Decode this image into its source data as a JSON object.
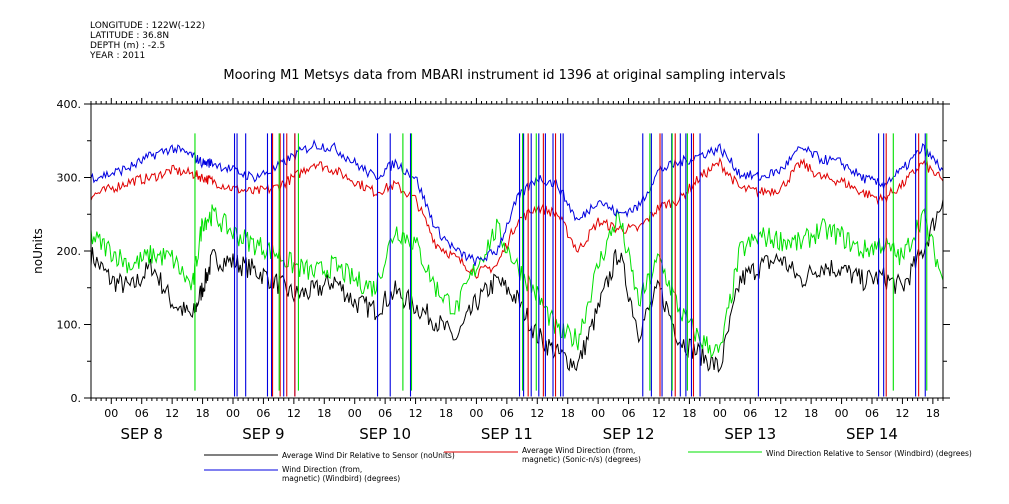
{
  "meta": {
    "longitude": "LONGITUDE : 122W(-122)",
    "latitude": "LATITUDE : 36.8N",
    "depth": "DEPTH (m) : -2.5",
    "year": "YEAR : 2011"
  },
  "chart_data": {
    "type": "line",
    "title": "Mooring M1 Metsys data from MBARI instrument id 1396 at original sampling intervals",
    "ylabel": "noUnits",
    "ylim": [
      0,
      400
    ],
    "y_ticks": [
      "0.",
      "100.",
      "200.",
      "300.",
      "400."
    ],
    "x_start_hour": -4,
    "x_end_hour": 164,
    "x_hour_ticks": [
      "00",
      "06",
      "12",
      "18",
      "00",
      "06",
      "12",
      "18",
      "00",
      "06",
      "12",
      "18",
      "00",
      "06",
      "12",
      "18",
      "00",
      "06",
      "12",
      "18",
      "00",
      "06",
      "12",
      "18",
      "00",
      "06",
      "12",
      "18"
    ],
    "x_day_labels": [
      "SEP  8",
      "SEP  9",
      "SEP 10",
      "SEP 11",
      "SEP 12",
      "SEP 13",
      "SEP 14"
    ],
    "grid": false,
    "legend_position": "bottom",
    "series": [
      {
        "name": "Average Wind Dir Relative to Sensor (noUnits)",
        "color": "#000000",
        "hours": [
          -4,
          0,
          4,
          8,
          12,
          16,
          18,
          20,
          24,
          28,
          32,
          36,
          40,
          44,
          48,
          52,
          56,
          60,
          64,
          68,
          72,
          76,
          80,
          84,
          88,
          92,
          96,
          100,
          104,
          108,
          112,
          116,
          120,
          124,
          128,
          132,
          136,
          140,
          144,
          148,
          152,
          156,
          160,
          164
        ],
        "values": [
          195,
          160,
          150,
          180,
          130,
          110,
          150,
          190,
          185,
          175,
          160,
          140,
          145,
          160,
          130,
          120,
          145,
          125,
          105,
          80,
          130,
          160,
          135,
          85,
          60,
          45,
          120,
          200,
          90,
          150,
          80,
          60,
          40,
          160,
          180,
          190,
          160,
          180,
          175,
          160,
          165,
          150,
          200,
          270
        ]
      },
      {
        "name": "Average Wind Direction (from, magnetic) (Sonic-n/s) (degrees)",
        "color": "#e00000",
        "hours": [
          -4,
          0,
          4,
          8,
          12,
          16,
          18,
          20,
          24,
          28,
          32,
          36,
          40,
          44,
          48,
          52,
          56,
          60,
          64,
          68,
          72,
          76,
          80,
          84,
          88,
          92,
          96,
          100,
          104,
          108,
          112,
          116,
          120,
          124,
          128,
          132,
          136,
          140,
          144,
          148,
          152,
          156,
          160,
          164
        ],
        "values": [
          275,
          285,
          295,
          300,
          310,
          305,
          300,
          295,
          285,
          280,
          285,
          300,
          320,
          310,
          295,
          280,
          290,
          270,
          210,
          190,
          170,
          180,
          240,
          260,
          250,
          200,
          240,
          230,
          230,
          260,
          270,
          300,
          320,
          285,
          280,
          285,
          320,
          300,
          295,
          280,
          270,
          290,
          320,
          295
        ]
      },
      {
        "name": "Wind Direction Relative to Sensor (Windbird) (degrees)",
        "color": "#00e000",
        "hours": [
          -4,
          0,
          4,
          8,
          12,
          16,
          18,
          20,
          24,
          28,
          32,
          36,
          40,
          44,
          48,
          52,
          56,
          60,
          64,
          68,
          72,
          76,
          80,
          84,
          88,
          92,
          96,
          100,
          104,
          108,
          112,
          116,
          120,
          124,
          128,
          132,
          136,
          140,
          144,
          148,
          152,
          156,
          160,
          164
        ],
        "values": [
          220,
          200,
          180,
          195,
          190,
          150,
          240,
          250,
          225,
          210,
          200,
          180,
          170,
          180,
          160,
          150,
          230,
          210,
          150,
          120,
          180,
          230,
          180,
          140,
          90,
          80,
          180,
          250,
          130,
          190,
          120,
          80,
          60,
          200,
          220,
          215,
          210,
          230,
          220,
          200,
          210,
          190,
          250,
          160
        ]
      },
      {
        "name": "Wind Direction (from, magnetic) (Windbird) (degrees)",
        "color": "#0000e0",
        "hours": [
          -4,
          0,
          4,
          8,
          12,
          16,
          18,
          20,
          24,
          28,
          32,
          36,
          40,
          44,
          48,
          52,
          56,
          60,
          64,
          68,
          72,
          76,
          80,
          84,
          88,
          92,
          96,
          100,
          104,
          108,
          112,
          116,
          120,
          124,
          128,
          132,
          136,
          140,
          144,
          148,
          152,
          156,
          160,
          164
        ],
        "values": [
          300,
          305,
          315,
          330,
          340,
          330,
          320,
          320,
          310,
          300,
          310,
          330,
          345,
          340,
          320,
          300,
          320,
          300,
          230,
          200,
          185,
          200,
          270,
          300,
          290,
          240,
          270,
          250,
          260,
          310,
          320,
          330,
          340,
          305,
          300,
          310,
          340,
          325,
          320,
          300,
          290,
          310,
          340,
          310
        ]
      }
    ],
    "spikes": {
      "blue": [
        24.3,
        24.8,
        26.5,
        30.8,
        31.6,
        34,
        36.2,
        52.5,
        55,
        59,
        80.5,
        81.3,
        82.8,
        84.3,
        85.6,
        87.1,
        88.6,
        89.1,
        104.8,
        106.5,
        108.6,
        110.5,
        112.2,
        113.3,
        114.4,
        116.1,
        127.6,
        151.3,
        152.3,
        158.6,
        160.5
      ],
      "red": [
        31.8,
        33.3,
        34.6,
        36.2,
        82.2,
        85.2,
        87.6,
        108.2,
        111.2,
        114.8,
        152.8,
        159.2
      ],
      "green": [
        16.5,
        33.1,
        36.9,
        57.5,
        59.2,
        81.1,
        83.8,
        106.2,
        110.6,
        113.6,
        154.2,
        160.8
      ]
    }
  }
}
